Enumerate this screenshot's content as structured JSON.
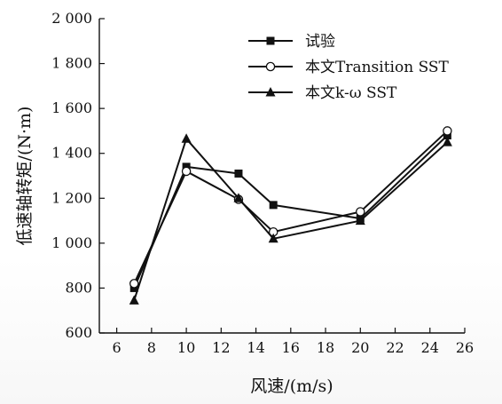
{
  "chart_data": {
    "type": "line",
    "title": "",
    "xlabel": "风速/(m/s)",
    "ylabel": "低速轴转矩/(N·m)",
    "xlim": [
      5,
      26
    ],
    "ylim": [
      600,
      2000
    ],
    "xticks": [
      6,
      8,
      10,
      12,
      14,
      16,
      18,
      20,
      22,
      24,
      26
    ],
    "yticks": [
      600,
      800,
      1000,
      1200,
      1400,
      1600,
      1800,
      2000
    ],
    "xtick_labels": [
      "6",
      "8",
      "10",
      "12",
      "14",
      "16",
      "18",
      "20",
      "22",
      "24",
      "26"
    ],
    "ytick_labels": [
      "600",
      "800",
      "1 000",
      "1 200",
      "1 400",
      "1 600",
      "1 800",
      "2 000"
    ],
    "grid": false,
    "legend_position": "top-right",
    "series": [
      {
        "name": "试验",
        "marker": "square-filled",
        "color": "#111111",
        "x": [
          7,
          10,
          13,
          15,
          20,
          25
        ],
        "y": [
          800,
          1340,
          1310,
          1170,
          1110,
          1480
        ]
      },
      {
        "name": "本文Transition SST",
        "marker": "circle-open",
        "color": "#111111",
        "x": [
          7,
          10,
          13,
          15,
          20,
          25
        ],
        "y": [
          820,
          1320,
          1195,
          1050,
          1140,
          1500
        ]
      },
      {
        "name": "本文k-ω SST",
        "marker": "triangle-filled",
        "color": "#111111",
        "x": [
          7,
          10,
          13,
          15,
          20,
          25
        ],
        "y": [
          745,
          1465,
          1200,
          1020,
          1100,
          1450
        ]
      }
    ]
  }
}
